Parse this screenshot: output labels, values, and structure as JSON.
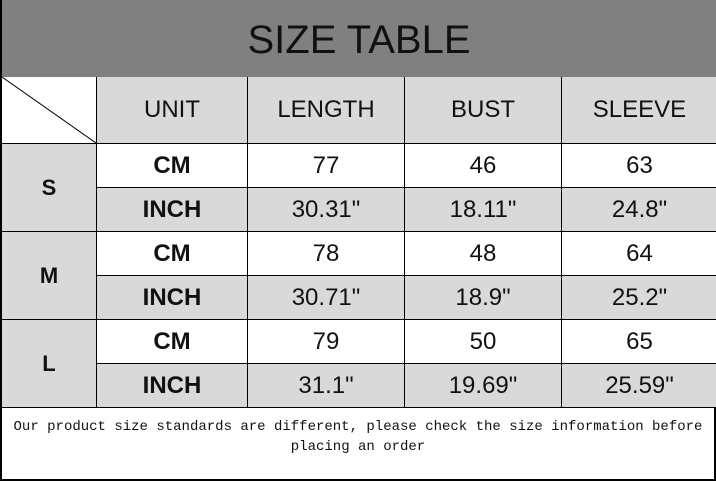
{
  "title": "SIZE TABLE",
  "headers": [
    "UNIT",
    "LENGTH",
    "BUST",
    "SLEEVE"
  ],
  "rows": [
    {
      "size": "S",
      "cm": {
        "unit": "CM",
        "length": "77",
        "bust": "46",
        "sleeve": "63"
      },
      "inch": {
        "unit": "INCH",
        "length": "30.31\"",
        "bust": "18.11\"",
        "sleeve": "24.8\""
      }
    },
    {
      "size": "M",
      "cm": {
        "unit": "CM",
        "length": "78",
        "bust": "48",
        "sleeve": "64"
      },
      "inch": {
        "unit": "INCH",
        "length": "30.71\"",
        "bust": "18.9\"",
        "sleeve": "25.2\""
      }
    },
    {
      "size": "L",
      "cm": {
        "unit": "CM",
        "length": "79",
        "bust": "50",
        "sleeve": "65"
      },
      "inch": {
        "unit": "INCH",
        "length": "31.1\"",
        "bust": "19.69\"",
        "sleeve": "25.59\""
      }
    }
  ],
  "footer": "Our product size standards are different, please check the size information before placing an order"
}
